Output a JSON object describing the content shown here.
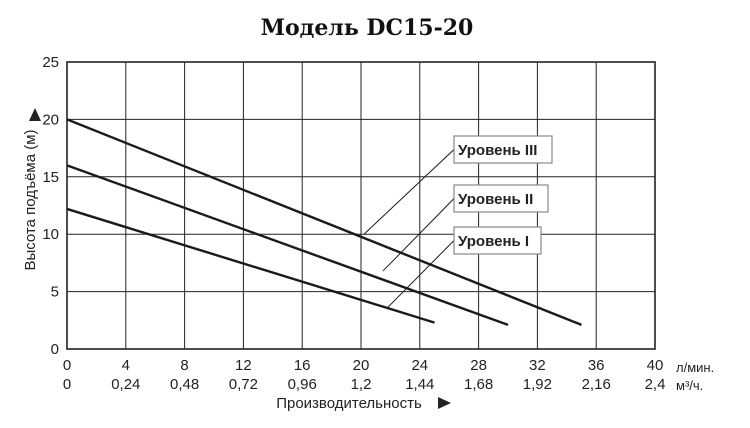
{
  "chart_data": {
    "type": "line",
    "title": "Модель DC15-20",
    "ylabel": "Высота подъёма (м)",
    "xlabel": "Производительность",
    "ylim": [
      0,
      25
    ],
    "xlim": [
      0,
      40
    ],
    "y_ticks": [
      "0",
      "5",
      "10",
      "15",
      "20",
      "25"
    ],
    "x_ticks_primary": [
      "0",
      "4",
      "8",
      "12",
      "16",
      "20",
      "24",
      "28",
      "32",
      "36",
      "40"
    ],
    "x_unit_primary": "л/мин.",
    "x_ticks_secondary": [
      "0",
      "0,24",
      "0,48",
      "0,72",
      "0,96",
      "1,2",
      "1,44",
      "1,68",
      "1,92",
      "2,16",
      "2,4"
    ],
    "x_unit_secondary": "м³/ч.",
    "grid": true,
    "series": [
      {
        "name": "Уровень III",
        "x": [
          0,
          35
        ],
        "y": [
          20,
          2.1
        ],
        "callout_x": 20.2,
        "callout_y": 10
      },
      {
        "name": "Уровень II",
        "x": [
          0,
          30
        ],
        "y": [
          16,
          2.1
        ],
        "callout_x": 21.5,
        "callout_y": 6.8
      },
      {
        "name": "Уровень I",
        "x": [
          0,
          25
        ],
        "y": [
          12.2,
          2.3
        ],
        "callout_x": 21.8,
        "callout_y": 3.6
      }
    ]
  }
}
